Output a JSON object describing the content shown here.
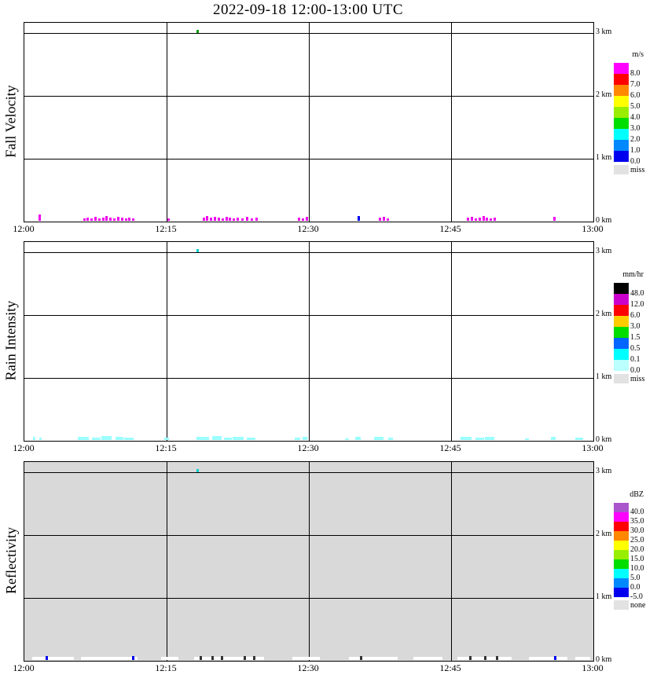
{
  "title": "2022-09-18  12:00-13:00 UTC",
  "chart_data": {
    "type": "heatmap",
    "description_units": {
      "x": "minutes after 12:00 UTC",
      "y": "km above ground"
    },
    "time_axis": {
      "tick_labels": [
        "12:00",
        "12:15",
        "12:30",
        "12:45",
        "13:00"
      ],
      "tick_minutes": [
        0,
        15,
        30,
        45,
        60
      ],
      "range_minutes": [
        0,
        60
      ]
    },
    "height_axis": {
      "tick_labels": [
        "0 km",
        "1 km",
        "2 km",
        "3 km"
      ],
      "tick_km": [
        0,
        1,
        2,
        3
      ],
      "range_km": [
        0,
        3.16
      ]
    },
    "mark_format": "[minutes_after_1200, echo_top_km, duration_min_optional, color_optional]",
    "panels": [
      {
        "name": "fall_velocity",
        "ylabel": "Fall Velocity",
        "background": "#ffffff",
        "mark_color": "#ee00ee",
        "colorbar": {
          "unit": "m/s",
          "entries": [
            [
              "8.0",
              "#ff00ff"
            ],
            [
              "7.0",
              "#ff0000"
            ],
            [
              "6.0",
              "#ff8800"
            ],
            [
              "5.0",
              "#ffff00"
            ],
            [
              "4.0",
              "#99ee00"
            ],
            [
              "3.0",
              "#00dd00"
            ],
            [
              "2.0",
              "#00ffff"
            ],
            [
              "1.0",
              "#0088ff"
            ],
            [
              "0.0",
              "#0000ee"
            ]
          ],
          "no_data_label": "miss",
          "no_data_color": "#e2e2e2"
        },
        "aloft_points": [
          [
            18.2,
            3.02,
            "#009900"
          ]
        ],
        "surface_marks": [
          [
            1.6,
            0.1
          ],
          [
            6.3,
            0.04
          ],
          [
            6.7,
            0.05
          ],
          [
            7.1,
            0.04
          ],
          [
            7.5,
            0.06
          ],
          [
            7.9,
            0.04
          ],
          [
            8.3,
            0.05
          ],
          [
            8.7,
            0.07
          ],
          [
            9.1,
            0.05
          ],
          [
            9.5,
            0.04
          ],
          [
            9.9,
            0.06
          ],
          [
            10.3,
            0.05
          ],
          [
            10.7,
            0.04
          ],
          [
            11.1,
            0.05
          ],
          [
            11.5,
            0.04
          ],
          [
            15.2,
            0.04
          ],
          [
            18.9,
            0.05
          ],
          [
            19.3,
            0.07
          ],
          [
            19.7,
            0.05
          ],
          [
            20.1,
            0.06
          ],
          [
            20.5,
            0.05
          ],
          [
            20.9,
            0.04
          ],
          [
            21.3,
            0.06
          ],
          [
            21.7,
            0.05
          ],
          [
            22.1,
            0.04
          ],
          [
            22.5,
            0.05
          ],
          [
            23.0,
            0.04
          ],
          [
            23.5,
            0.06
          ],
          [
            24.0,
            0.04
          ],
          [
            24.5,
            0.05
          ],
          [
            29.0,
            0.05
          ],
          [
            29.4,
            0.04
          ],
          [
            29.8,
            0.06
          ],
          [
            35.3,
            0.08,
            null,
            "#0000ee"
          ],
          [
            37.5,
            0.05
          ],
          [
            37.9,
            0.06
          ],
          [
            38.3,
            0.04
          ],
          [
            46.8,
            0.05
          ],
          [
            47.2,
            0.06
          ],
          [
            47.6,
            0.04
          ],
          [
            48.0,
            0.05
          ],
          [
            48.4,
            0.07
          ],
          [
            48.8,
            0.05
          ],
          [
            49.2,
            0.04
          ],
          [
            49.6,
            0.05
          ],
          [
            55.9,
            0.06
          ]
        ]
      },
      {
        "name": "rain_intensity",
        "ylabel": "Rain Intensity",
        "background": "#ffffff",
        "mark_color": "#99ffff",
        "colorbar": {
          "unit": "mm/hr",
          "entries": [
            [
              "48.0",
              "#000000"
            ],
            [
              "12.0",
              "#cc00cc"
            ],
            [
              "6.0",
              "#ff0000"
            ],
            [
              "3.0",
              "#ffcc00"
            ],
            [
              "1.5",
              "#00dd00"
            ],
            [
              "0.5",
              "#0066ff"
            ],
            [
              "0.1",
              "#00ffff"
            ],
            [
              "0.0",
              "#bbffff"
            ]
          ],
          "no_data_label": "miss",
          "no_data_color": "#e2e2e2"
        },
        "aloft_points": [
          [
            18.2,
            3.02,
            "#00cccc"
          ]
        ],
        "surface_marks": [
          [
            1.0,
            0.05
          ],
          [
            1.7,
            0.04
          ],
          [
            6.2,
            0.05,
            1.2
          ],
          [
            7.6,
            0.04,
            0.9
          ],
          [
            8.7,
            0.06,
            1.1
          ],
          [
            10.0,
            0.05,
            0.8
          ],
          [
            11.0,
            0.04,
            1.0
          ],
          [
            15.0,
            0.04,
            0.5
          ],
          [
            18.8,
            0.05,
            1.3
          ],
          [
            20.3,
            0.06,
            1.0
          ],
          [
            21.5,
            0.04,
            0.8
          ],
          [
            22.5,
            0.05,
            1.2
          ],
          [
            23.9,
            0.04,
            0.9
          ],
          [
            28.8,
            0.04,
            0.6
          ],
          [
            29.6,
            0.05,
            0.5
          ],
          [
            34.0,
            0.03,
            0.4
          ],
          [
            35.2,
            0.05,
            0.6
          ],
          [
            37.4,
            0.05,
            1.0
          ],
          [
            38.6,
            0.04,
            0.5
          ],
          [
            46.6,
            0.05,
            1.2
          ],
          [
            48.0,
            0.04,
            0.9
          ],
          [
            49.1,
            0.05,
            1.0
          ],
          [
            53.0,
            0.03,
            0.4
          ],
          [
            55.8,
            0.05,
            0.5
          ],
          [
            58.5,
            0.04,
            0.8
          ]
        ]
      },
      {
        "name": "reflectivity",
        "ylabel": "Reflectivity",
        "background": "#d9d9d9",
        "mark_color": "#ffffff",
        "colorbar": {
          "unit": "dBZ",
          "entries": [
            [
              "40.0",
              "#aa55cc"
            ],
            [
              "35.0",
              "#ff00ff"
            ],
            [
              "30.0",
              "#ff0000"
            ],
            [
              "25.0",
              "#ff8800"
            ],
            [
              "20.0",
              "#ffff00"
            ],
            [
              "15.0",
              "#99ee00"
            ],
            [
              "10.0",
              "#00dd00"
            ],
            [
              "5.0",
              "#00ffff"
            ],
            [
              "0.0",
              "#0088ff"
            ],
            [
              "-5.0",
              "#0000ee"
            ]
          ],
          "no_data_label": "none",
          "no_data_color": "#e2e2e2"
        },
        "aloft_points": [
          [
            18.2,
            3.02,
            "#00cccc"
          ]
        ],
        "surface_segments": [
          [
            0.8,
            5.2
          ],
          [
            6.0,
            12.0
          ],
          [
            14.4,
            16.2
          ],
          [
            17.9,
            25.3
          ],
          [
            28.3,
            31.2
          ],
          [
            34.2,
            39.3
          ],
          [
            41.0,
            44.1
          ],
          [
            45.7,
            51.4
          ],
          [
            53.2,
            57.3
          ],
          [
            58.1,
            59.7
          ]
        ],
        "surface_ticks": [
          [
            2.3,
            "#0000ee"
          ],
          [
            11.4,
            "#0000ee"
          ],
          [
            18.6,
            "#333333"
          ],
          [
            19.8,
            "#333333"
          ],
          [
            20.8,
            "#333333"
          ],
          [
            23.2,
            "#333333"
          ],
          [
            24.2,
            "#333333"
          ],
          [
            35.5,
            "#333333"
          ],
          [
            47.0,
            "#333333"
          ],
          [
            48.6,
            "#333333"
          ],
          [
            49.8,
            "#333333"
          ],
          [
            55.9,
            "#0000ee"
          ]
        ]
      }
    ]
  }
}
